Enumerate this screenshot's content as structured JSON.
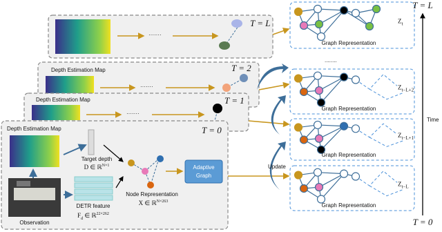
{
  "cards": [
    {
      "label": "T = L"
    },
    {
      "label": "T = 2",
      "map_title": "Depth Estimation Map"
    },
    {
      "label": "T = 1",
      "map_title": "Depth Estimation Map"
    },
    {
      "label": "T = 0",
      "map_title": "Depth Estimation Map"
    }
  ],
  "main": {
    "target": {
      "title": "Target depth",
      "math": "D ∈ ℝ",
      "sup": "N×1"
    },
    "detr": {
      "title": "DETR feature",
      "math": "F",
      "sub": "d",
      "math2": " ∈ ℝ",
      "sup": "22×262"
    },
    "observation": "Observation",
    "node": {
      "title": "Node Representation",
      "math": "X ∈ ℝ",
      "sup": "N×263"
    },
    "adaptive": [
      "Adaptive",
      "Graph"
    ]
  },
  "dots": "·······",
  "update": "Update",
  "between": "........",
  "graphs": [
    {
      "symbol": "Z",
      "sub": "t",
      "caption": "Graph Representation"
    },
    {
      "symbol": "Z",
      "sub": "t−L+2",
      "caption": "Graph Representation"
    },
    {
      "symbol": "Z",
      "sub": "t−L+1",
      "caption": "Graph Representation"
    },
    {
      "symbol": "Z",
      "sub": "t−L",
      "caption": "Graph Representation"
    }
  ],
  "time_axis": {
    "top": "T = L",
    "label": "Time",
    "bottom": "T = 0"
  }
}
